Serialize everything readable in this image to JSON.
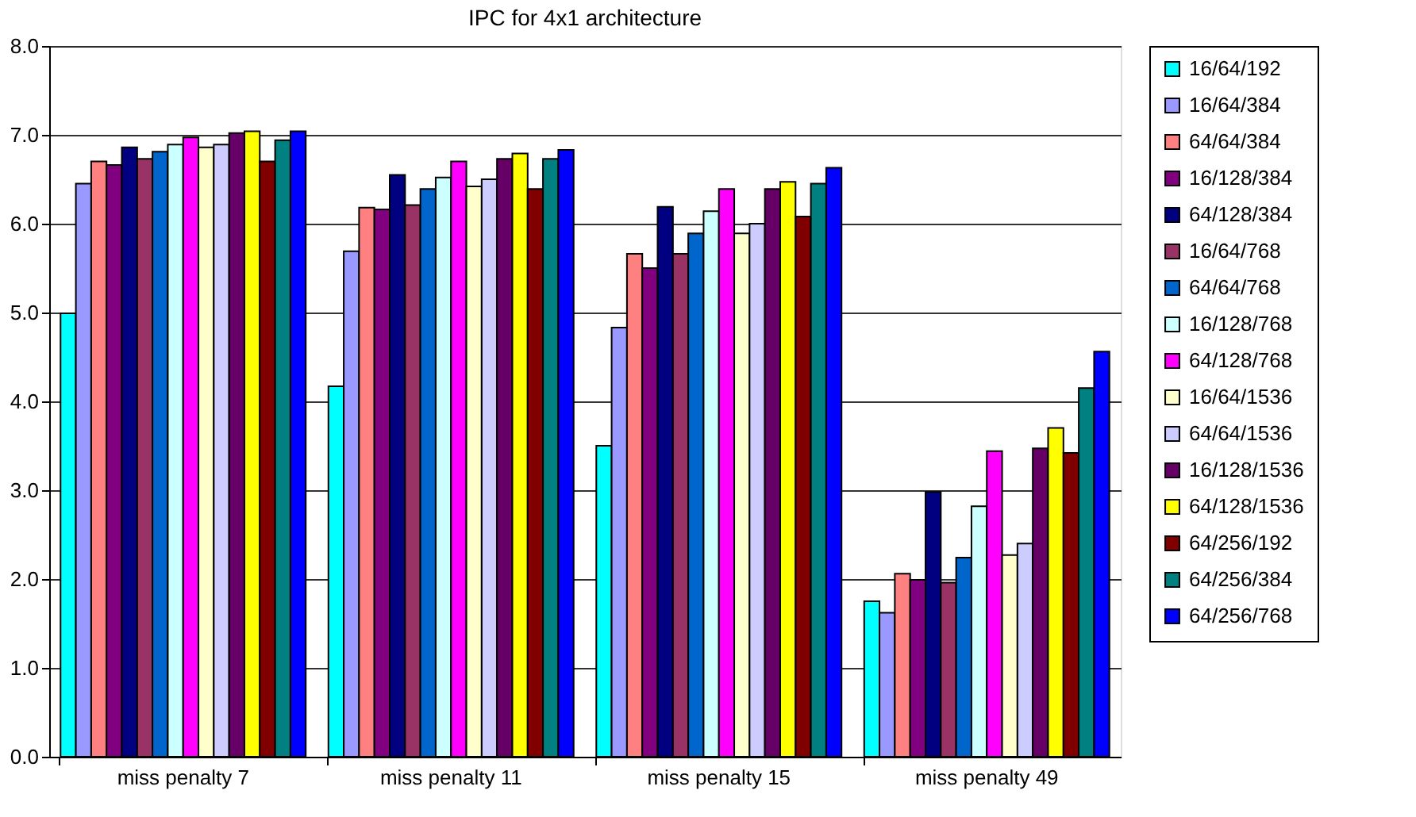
{
  "chart_data": {
    "type": "bar",
    "title": "IPC for 4x1 architecture",
    "categories": [
      "miss penalty 7",
      "miss penalty 11",
      "miss penalty 15",
      "miss penalty 49"
    ],
    "ylim": [
      0,
      8
    ],
    "yticks": [
      {
        "value": 0,
        "label": "0.0"
      },
      {
        "value": 1,
        "label": "1.0"
      },
      {
        "value": 2,
        "label": "2.0"
      },
      {
        "value": 3,
        "label": "3.0"
      },
      {
        "value": 4,
        "label": "4.0"
      },
      {
        "value": 5,
        "label": "5.0"
      },
      {
        "value": 6,
        "label": "6.0"
      },
      {
        "value": 7,
        "label": "7.0"
      },
      {
        "value": 8,
        "label": "8.0"
      }
    ],
    "grid": "y",
    "legend": "right",
    "series": [
      {
        "name": "16/64/192",
        "color": "#00ffff",
        "values": [
          4.99,
          4.17,
          3.5,
          1.75
        ]
      },
      {
        "name": "16/64/384",
        "color": "#9999ff",
        "values": [
          6.45,
          5.69,
          4.83,
          1.62
        ]
      },
      {
        "name": "64/64/384",
        "color": "#ff8080",
        "values": [
          6.7,
          6.18,
          5.66,
          2.06
        ]
      },
      {
        "name": "16/128/384",
        "color": "#800080",
        "values": [
          6.66,
          6.16,
          5.5,
          1.99
        ]
      },
      {
        "name": "64/128/384",
        "color": "#000080",
        "values": [
          6.86,
          6.55,
          6.19,
          2.98
        ]
      },
      {
        "name": "16/64/768",
        "color": "#993366",
        "values": [
          6.73,
          6.21,
          5.66,
          1.96
        ]
      },
      {
        "name": "64/64/768",
        "color": "#0066cc",
        "values": [
          6.81,
          6.39,
          5.89,
          2.24
        ]
      },
      {
        "name": "16/128/768",
        "color": "#ccffff",
        "values": [
          6.89,
          6.52,
          6.14,
          2.82
        ]
      },
      {
        "name": "64/128/768",
        "color": "#ff00ff",
        "values": [
          6.97,
          6.7,
          6.39,
          3.44
        ]
      },
      {
        "name": "16/64/1536",
        "color": "#ffffcc",
        "values": [
          6.86,
          6.42,
          5.89,
          2.27
        ]
      },
      {
        "name": "64/64/1536",
        "color": "#ccccff",
        "values": [
          6.89,
          6.5,
          6.0,
          2.4
        ]
      },
      {
        "name": "16/128/1536",
        "color": "#660066",
        "values": [
          7.02,
          6.73,
          6.39,
          3.47
        ]
      },
      {
        "name": "64/128/1536",
        "color": "#ffff00",
        "values": [
          7.04,
          6.79,
          6.47,
          3.7
        ]
      },
      {
        "name": "64/256/192",
        "color": "#800000",
        "values": [
          6.7,
          6.39,
          6.08,
          3.42
        ]
      },
      {
        "name": "64/256/384",
        "color": "#008080",
        "values": [
          6.94,
          6.73,
          6.45,
          4.15
        ]
      },
      {
        "name": "64/256/768",
        "color": "#0000ff",
        "values": [
          7.04,
          6.83,
          6.63,
          4.56
        ]
      }
    ]
  }
}
